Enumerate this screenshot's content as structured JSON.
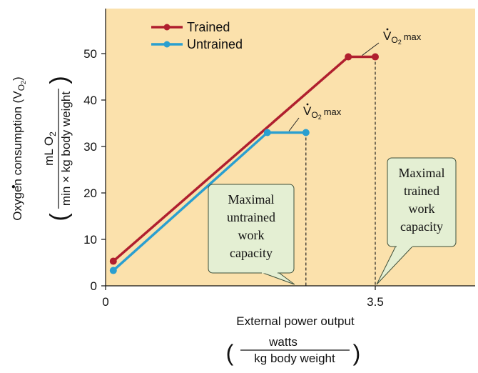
{
  "colors": {
    "plot_background": "#fbe1ac",
    "trained": "#b01f2e",
    "untrained": "#2a9fd0",
    "callout_fill": "#e4efd3",
    "callout_stroke": "#3d4f3a"
  },
  "chart_data": {
    "type": "line",
    "ylim": [
      0,
      60
    ],
    "yticks": [
      0,
      10,
      20,
      30,
      40,
      50
    ],
    "xticks": [
      {
        "value": 0,
        "label": "0"
      },
      {
        "value": 3.5,
        "label": "3.5"
      }
    ],
    "ylabel": {
      "text": "Oxygen consumption (",
      "vdot": "V",
      "sub": "O",
      "sub2": "2",
      "close": ")"
    },
    "yunit": {
      "numerator": "mL O",
      "numerator_sub": "2",
      "denominator": "min × kg body weight"
    },
    "xlabel": "External power output",
    "xunit": {
      "numerator": "watts",
      "denominator": "kg body weight"
    },
    "series": [
      {
        "name": "Trained",
        "color": "#b01f2e",
        "x": [
          0.1,
          3.15,
          3.5
        ],
        "y": [
          5.3,
          49.3,
          49.3
        ]
      },
      {
        "name": "Untrained",
        "color": "#2a9fd0",
        "x": [
          0.1,
          2.1,
          2.6
        ],
        "y": [
          3.3,
          33,
          33
        ]
      }
    ],
    "vo2max_label": {
      "v": "V",
      "sub": "O",
      "sub2": "2",
      "tail": "max"
    },
    "annotations": [
      {
        "series": "Untrained",
        "lines": [
          "Maximal",
          "untrained",
          "work",
          "capacity"
        ]
      },
      {
        "series": "Trained",
        "lines": [
          "Maximal",
          "trained",
          "work",
          "capacity"
        ]
      }
    ],
    "legend": "top-left"
  }
}
